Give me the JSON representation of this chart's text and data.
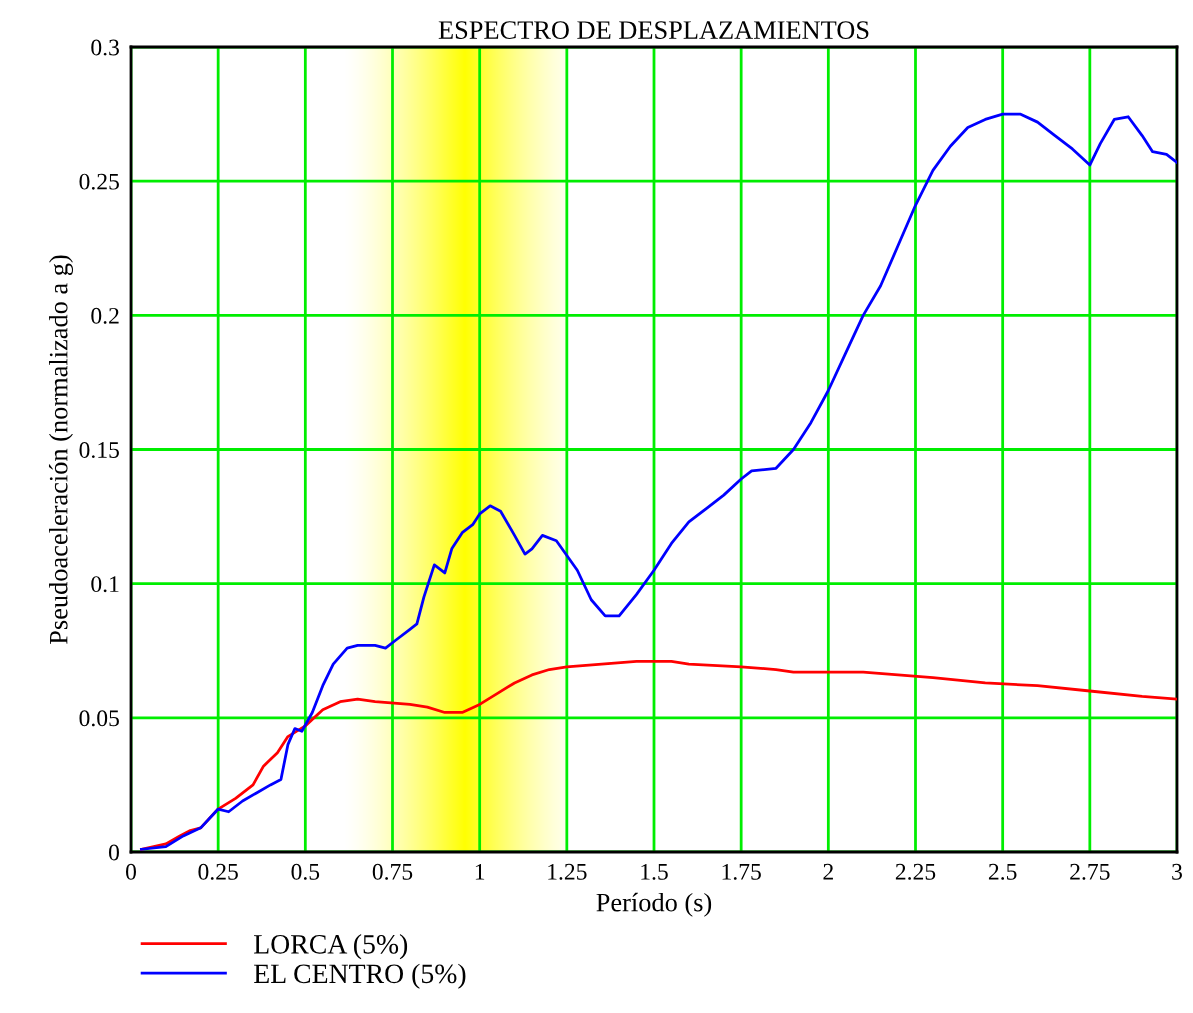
{
  "chart_data": {
    "type": "line",
    "title": "ESPECTRO DE DESPLAZAMIENTOS",
    "xlabel": "Período (s)",
    "ylabel": "Pseudoaceleración (normalizado a g)",
    "xlim": [
      0,
      3
    ],
    "xticks": [
      0,
      0.25,
      0.5,
      0.75,
      1,
      1.25,
      1.5,
      1.75,
      2,
      2.25,
      2.5,
      2.75,
      3
    ],
    "ylim": [
      0,
      0.3
    ],
    "yticks": [
      0,
      0.05,
      0.1,
      0.15,
      0.2,
      0.25,
      0.3
    ],
    "grid": true,
    "legend": "bottom left",
    "line_style": "solid",
    "marker": "none",
    "bands": [
      {
        "axis": "x",
        "from": 0.6,
        "to": 1.25,
        "color": "#ffff00"
      }
    ],
    "series": [
      {
        "name": "LORCA (5%)",
        "color": "#ff0000",
        "x": [
          0.03,
          0.1,
          0.14,
          0.17,
          0.2,
          0.25,
          0.3,
          0.35,
          0.38,
          0.42,
          0.45,
          0.5,
          0.55,
          0.6,
          0.65,
          0.7,
          0.8,
          0.85,
          0.9,
          0.95,
          1.0,
          1.05,
          1.1,
          1.15,
          1.2,
          1.25,
          1.35,
          1.45,
          1.55,
          1.6,
          1.75,
          1.85,
          1.9,
          2.0,
          2.1,
          2.2,
          2.3,
          2.45,
          2.6,
          2.75,
          2.9,
          3.0
        ],
        "values": [
          0.001,
          0.003,
          0.006,
          0.008,
          0.009,
          0.016,
          0.02,
          0.025,
          0.032,
          0.037,
          0.043,
          0.047,
          0.053,
          0.056,
          0.057,
          0.056,
          0.055,
          0.054,
          0.052,
          0.052,
          0.055,
          0.059,
          0.063,
          0.066,
          0.068,
          0.069,
          0.07,
          0.071,
          0.071,
          0.07,
          0.069,
          0.068,
          0.067,
          0.067,
          0.067,
          0.066,
          0.065,
          0.063,
          0.062,
          0.06,
          0.058,
          0.057
        ]
      },
      {
        "name": "EL CENTRO (5%)",
        "color": "#0000ff",
        "x": [
          0.03,
          0.1,
          0.15,
          0.2,
          0.25,
          0.28,
          0.32,
          0.36,
          0.4,
          0.43,
          0.45,
          0.47,
          0.49,
          0.52,
          0.55,
          0.58,
          0.62,
          0.65,
          0.7,
          0.73,
          0.76,
          0.8,
          0.82,
          0.84,
          0.87,
          0.9,
          0.92,
          0.95,
          0.98,
          1.0,
          1.03,
          1.06,
          1.1,
          1.13,
          1.15,
          1.18,
          1.22,
          1.28,
          1.32,
          1.36,
          1.4,
          1.45,
          1.5,
          1.55,
          1.6,
          1.65,
          1.7,
          1.75,
          1.78,
          1.85,
          1.9,
          1.95,
          2.0,
          2.05,
          2.1,
          2.15,
          2.2,
          2.25,
          2.3,
          2.35,
          2.4,
          2.45,
          2.5,
          2.55,
          2.6,
          2.65,
          2.7,
          2.75,
          2.78,
          2.82,
          2.86,
          2.9,
          2.93,
          2.97,
          3.0
        ],
        "values": [
          0.001,
          0.002,
          0.006,
          0.009,
          0.016,
          0.015,
          0.019,
          0.022,
          0.025,
          0.027,
          0.04,
          0.046,
          0.045,
          0.052,
          0.062,
          0.07,
          0.076,
          0.077,
          0.077,
          0.076,
          0.079,
          0.083,
          0.085,
          0.095,
          0.107,
          0.104,
          0.113,
          0.119,
          0.122,
          0.126,
          0.129,
          0.127,
          0.118,
          0.111,
          0.113,
          0.118,
          0.116,
          0.105,
          0.094,
          0.088,
          0.088,
          0.096,
          0.105,
          0.115,
          0.123,
          0.128,
          0.133,
          0.139,
          0.142,
          0.143,
          0.15,
          0.16,
          0.172,
          0.186,
          0.2,
          0.211,
          0.226,
          0.241,
          0.254,
          0.263,
          0.27,
          0.273,
          0.275,
          0.275,
          0.272,
          0.267,
          0.262,
          0.256,
          0.264,
          0.273,
          0.274,
          0.267,
          0.261,
          0.26,
          0.257
        ]
      }
    ]
  }
}
